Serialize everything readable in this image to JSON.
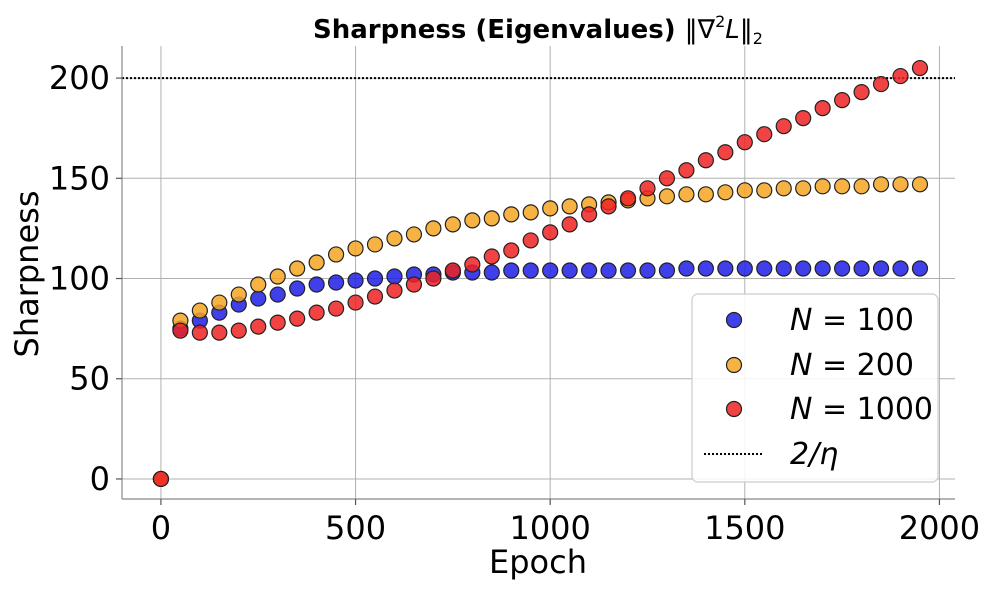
{
  "chart_data": {
    "type": "scatter",
    "title": {
      "main": "Sharpness (Eigenvalues) ",
      "math": "‖∇",
      "sup": "2",
      "math2": "L‖",
      "sub": "2"
    },
    "xlabel": "Epoch",
    "ylabel": "Sharpness",
    "xlim": [
      -100,
      2040
    ],
    "ylim": [
      -10,
      216
    ],
    "xticks": [
      0,
      500,
      1000,
      1500,
      2000
    ],
    "yticks": [
      0,
      50,
      100,
      150,
      200
    ],
    "grid": true,
    "legend_position": "lower-right",
    "reference_line": {
      "name": "2/η",
      "value": 200,
      "style": "dotted",
      "color": "#000000"
    },
    "series": [
      {
        "name": "N = 100",
        "color": "#1f1fe8",
        "points": [
          [
            0,
            0
          ],
          [
            50,
            75
          ],
          [
            100,
            79
          ],
          [
            150,
            83
          ],
          [
            200,
            87
          ],
          [
            250,
            90
          ],
          [
            300,
            92
          ],
          [
            350,
            95
          ],
          [
            400,
            97
          ],
          [
            450,
            98
          ],
          [
            500,
            99
          ],
          [
            550,
            100
          ],
          [
            600,
            101
          ],
          [
            650,
            102
          ],
          [
            700,
            102
          ],
          [
            750,
            103
          ],
          [
            800,
            103
          ],
          [
            850,
            103
          ],
          [
            900,
            104
          ],
          [
            950,
            104
          ],
          [
            1000,
            104
          ],
          [
            1050,
            104
          ],
          [
            1100,
            104
          ],
          [
            1150,
            104
          ],
          [
            1200,
            104
          ],
          [
            1250,
            104
          ],
          [
            1300,
            104
          ],
          [
            1350,
            105
          ],
          [
            1400,
            105
          ],
          [
            1450,
            105
          ],
          [
            1500,
            105
          ],
          [
            1550,
            105
          ],
          [
            1600,
            105
          ],
          [
            1650,
            105
          ],
          [
            1700,
            105
          ],
          [
            1750,
            105
          ],
          [
            1800,
            105
          ],
          [
            1850,
            105
          ],
          [
            1900,
            105
          ],
          [
            1950,
            105
          ]
        ]
      },
      {
        "name": "N = 200",
        "color": "#f5a623",
        "points": [
          [
            0,
            0
          ],
          [
            50,
            79
          ],
          [
            100,
            84
          ],
          [
            150,
            88
          ],
          [
            200,
            92
          ],
          [
            250,
            97
          ],
          [
            300,
            101
          ],
          [
            350,
            105
          ],
          [
            400,
            108
          ],
          [
            450,
            112
          ],
          [
            500,
            115
          ],
          [
            550,
            117
          ],
          [
            600,
            120
          ],
          [
            650,
            122
          ],
          [
            700,
            125
          ],
          [
            750,
            127
          ],
          [
            800,
            129
          ],
          [
            850,
            130
          ],
          [
            900,
            132
          ],
          [
            950,
            133
          ],
          [
            1000,
            135
          ],
          [
            1050,
            136
          ],
          [
            1100,
            137
          ],
          [
            1150,
            138
          ],
          [
            1200,
            139
          ],
          [
            1250,
            140
          ],
          [
            1300,
            141
          ],
          [
            1350,
            142
          ],
          [
            1400,
            142
          ],
          [
            1450,
            143
          ],
          [
            1500,
            144
          ],
          [
            1550,
            144
          ],
          [
            1600,
            145
          ],
          [
            1650,
            145
          ],
          [
            1700,
            146
          ],
          [
            1750,
            146
          ],
          [
            1800,
            146
          ],
          [
            1850,
            147
          ],
          [
            1900,
            147
          ],
          [
            1950,
            147
          ]
        ]
      },
      {
        "name": "N = 1000",
        "color": "#ee2222",
        "points": [
          [
            0,
            0
          ],
          [
            50,
            74
          ],
          [
            100,
            73
          ],
          [
            150,
            73
          ],
          [
            200,
            74
          ],
          [
            250,
            76
          ],
          [
            300,
            78
          ],
          [
            350,
            80
          ],
          [
            400,
            83
          ],
          [
            450,
            85
          ],
          [
            500,
            88
          ],
          [
            550,
            91
          ],
          [
            600,
            94
          ],
          [
            650,
            97
          ],
          [
            700,
            100
          ],
          [
            750,
            104
          ],
          [
            800,
            107
          ],
          [
            850,
            111
          ],
          [
            900,
            114
          ],
          [
            950,
            119
          ],
          [
            1000,
            123
          ],
          [
            1050,
            127
          ],
          [
            1100,
            132
          ],
          [
            1150,
            136
          ],
          [
            1200,
            140
          ],
          [
            1250,
            145
          ],
          [
            1300,
            150
          ],
          [
            1350,
            154
          ],
          [
            1400,
            159
          ],
          [
            1450,
            163
          ],
          [
            1500,
            168
          ],
          [
            1550,
            172
          ],
          [
            1600,
            176
          ],
          [
            1650,
            180
          ],
          [
            1700,
            185
          ],
          [
            1750,
            189
          ],
          [
            1800,
            193
          ],
          [
            1850,
            197
          ],
          [
            1900,
            201
          ],
          [
            1950,
            205
          ]
        ]
      }
    ],
    "legend": [
      {
        "label_pre": "N = ",
        "label_num": "100"
      },
      {
        "label_pre": "N = ",
        "label_num": "200"
      },
      {
        "label_pre": "N = ",
        "label_num": "1000"
      },
      {
        "label_pre": "2/η",
        "label_num": ""
      }
    ]
  }
}
